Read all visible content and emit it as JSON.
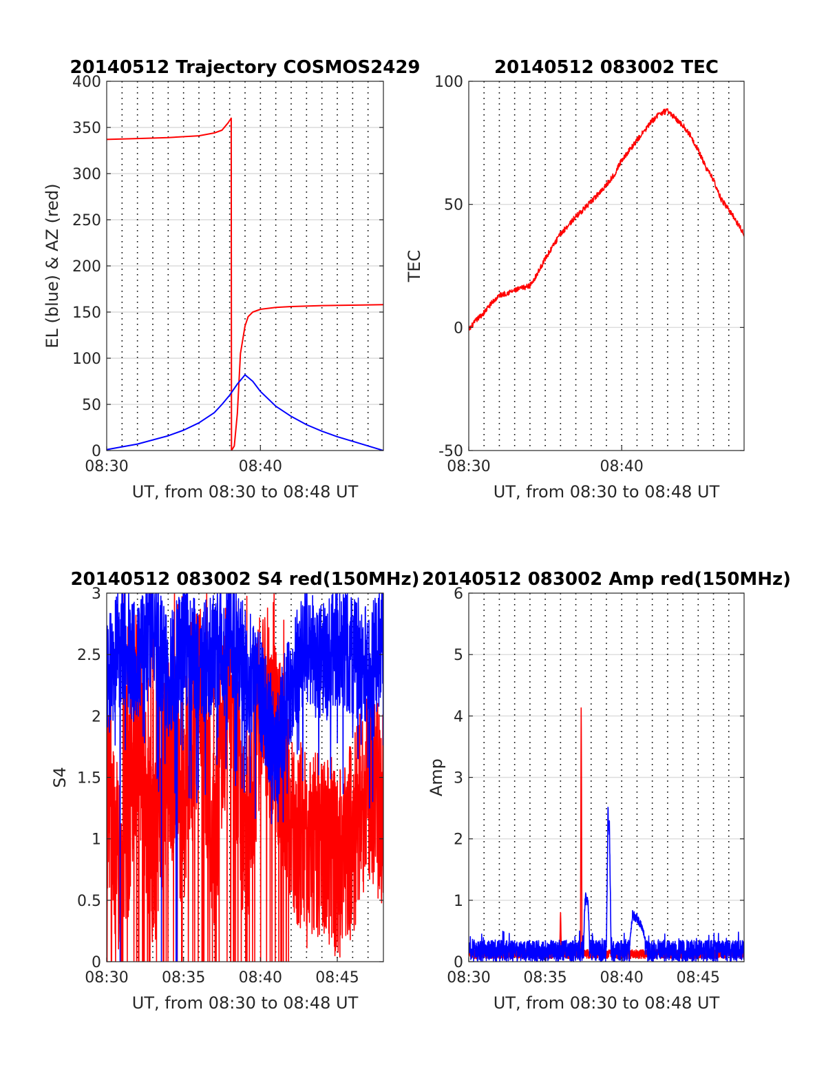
{
  "chart_data": [
    {
      "id": "trajectory",
      "type": "line",
      "title": "20140512 Trajectory COSMOS2429",
      "xlabel": "UT, from 08:30 to 08:48 UT",
      "ylabel": "EL (blue) & AZ (red)",
      "xlim_minutes": [
        0,
        18
      ],
      "ylim": [
        0,
        400
      ],
      "xticks": [
        {
          "minute": 0,
          "label": "08:30"
        },
        {
          "minute": 10,
          "label": "08:40"
        }
      ],
      "yticks": [
        0,
        50,
        100,
        150,
        200,
        250,
        300,
        350,
        400
      ],
      "grid": {
        "horizontal": true,
        "vertical_dotted_every_minutes": 1
      },
      "series": [
        {
          "name": "AZ",
          "color": "#ff0000",
          "x_minutes": [
            0,
            2,
            4,
            6,
            7,
            7.5,
            7.9,
            8.1,
            8.12,
            8.3,
            8.5,
            8.7,
            9.0,
            9.2,
            9.5,
            10,
            11,
            12,
            14,
            16,
            18
          ],
          "values": [
            337,
            338,
            339,
            341,
            344,
            347,
            355,
            360,
            0,
            5,
            40,
            105,
            135,
            145,
            150,
            153,
            155,
            156,
            157,
            157.5,
            158
          ]
        },
        {
          "name": "EL",
          "color": "#0000ff",
          "x_minutes": [
            0,
            2,
            4,
            5,
            6,
            7,
            7.5,
            8,
            8.5,
            9,
            9.5,
            10,
            11,
            12,
            13,
            14,
            15,
            16,
            17,
            18
          ],
          "values": [
            1,
            7,
            16,
            22,
            30,
            41,
            50,
            60,
            72,
            82,
            75,
            64,
            48,
            37,
            28,
            21,
            15,
            10,
            5,
            0
          ]
        }
      ]
    },
    {
      "id": "tec",
      "type": "line",
      "title": "20140512 083002 TEC",
      "xlabel": "UT, from 08:30 to 08:48 UT",
      "ylabel": "TEC",
      "xlim_minutes": [
        0,
        18
      ],
      "ylim": [
        -50,
        100
      ],
      "xticks": [
        {
          "minute": 0,
          "label": "08:30"
        },
        {
          "minute": 10,
          "label": "08:40"
        }
      ],
      "yticks": [
        -50,
        0,
        50,
        100
      ],
      "grid": {
        "horizontal": true,
        "vertical_dotted_every_minutes": 1
      },
      "series": [
        {
          "name": "TEC",
          "color": "#ff0000",
          "x_minutes": [
            0,
            0.5,
            1,
            1.5,
            2,
            3,
            3.5,
            4,
            4.5,
            5,
            5.5,
            6,
            7,
            7.5,
            8,
            9,
            9.5,
            10,
            11,
            11.5,
            12,
            12.5,
            13,
            14,
            14.5,
            15,
            15.5,
            16,
            16.5,
            17,
            18
          ],
          "values": [
            -1,
            3,
            6,
            10,
            13,
            15,
            16,
            17,
            22,
            28,
            33,
            38,
            45,
            48,
            51,
            58,
            62,
            68,
            76,
            80,
            84,
            87,
            88,
            82,
            78,
            72,
            65,
            60,
            52,
            48,
            38
          ]
        }
      ]
    },
    {
      "id": "s4",
      "type": "line",
      "title": "20140512 083002 S4 red(150MHz)",
      "xlabel": "UT, from 08:30 to 08:48 UT",
      "ylabel": "S4",
      "xlim_minutes": [
        0,
        18
      ],
      "ylim": [
        0,
        3
      ],
      "xticks": [
        {
          "minute": 0,
          "label": "08:30"
        },
        {
          "minute": 5,
          "label": "08:35"
        },
        {
          "minute": 10,
          "label": "08:40"
        },
        {
          "minute": 15,
          "label": "08:45"
        }
      ],
      "yticks": [
        0,
        0.5,
        1,
        1.5,
        2,
        2.5,
        3
      ],
      "ytick_labels": [
        "0",
        "0.5",
        "1",
        "1.5",
        "2",
        "2.5",
        "3"
      ],
      "grid": {
        "horizontal": true,
        "vertical_dotted_every_minutes": 1
      },
      "series": [
        {
          "name": "S4 red",
          "color": "#ff0000",
          "x_minutes": [
            0,
            1,
            2,
            3,
            4,
            5,
            6,
            7,
            8,
            9,
            10,
            11,
            12,
            13,
            14,
            15,
            16,
            17,
            18
          ],
          "values": [
            1.4,
            0.6,
            2.0,
            0.8,
            1.7,
            1.2,
            2.2,
            1.0,
            2.5,
            0.9,
            2.1,
            1.8,
            1.2,
            0.9,
            1.0,
            0.8,
            1.0,
            1.5,
            1.2
          ]
        },
        {
          "name": "S4 blue",
          "color": "#0000ff",
          "x_minutes": [
            0,
            1,
            2,
            3,
            4,
            5,
            6,
            7,
            8,
            9,
            10,
            11,
            12,
            13,
            14,
            15,
            16,
            17,
            18
          ],
          "values": [
            2.3,
            2.6,
            2.4,
            2.7,
            2.3,
            2.6,
            2.4,
            2.5,
            2.7,
            2.4,
            2.2,
            1.7,
            2.3,
            2.6,
            2.4,
            2.6,
            2.5,
            2.4,
            2.6
          ]
        }
      ]
    },
    {
      "id": "amp",
      "type": "line",
      "title": "20140512 083002 Amp red(150MHz)",
      "xlabel": "UT, from 08:30 to 08:48 UT",
      "ylabel": "Amp",
      "xlim_minutes": [
        0,
        18
      ],
      "ylim": [
        0,
        6
      ],
      "xticks": [
        {
          "minute": 0,
          "label": "08:30"
        },
        {
          "minute": 5,
          "label": "08:35"
        },
        {
          "minute": 10,
          "label": "08:40"
        },
        {
          "minute": 15,
          "label": "08:45"
        }
      ],
      "yticks": [
        0,
        1,
        2,
        3,
        4,
        5,
        6
      ],
      "grid": {
        "horizontal": true,
        "vertical_dotted_every_minutes": 1
      },
      "series": [
        {
          "name": "Amp red",
          "color": "#ff0000",
          "x_minutes": [
            0,
            5.95,
            6.0,
            6.05,
            7.3,
            7.35,
            7.4,
            7.5,
            18
          ],
          "values": [
            0.2,
            0.2,
            0.85,
            0.2,
            0.2,
            4.45,
            0.2,
            0.2,
            0.2
          ]
        },
        {
          "name": "Amp blue",
          "color": "#0000ff",
          "x_minutes": [
            0,
            7.5,
            7.6,
            7.8,
            7.9,
            9.0,
            9.1,
            9.2,
            9.3,
            10.5,
            10.7,
            11.0,
            11.3,
            11.6,
            18
          ],
          "values": [
            0.25,
            0.25,
            1.1,
            1.05,
            0.3,
            0.3,
            2.5,
            2.3,
            0.3,
            0.3,
            0.8,
            0.75,
            0.6,
            0.35,
            0.25
          ]
        }
      ]
    }
  ]
}
